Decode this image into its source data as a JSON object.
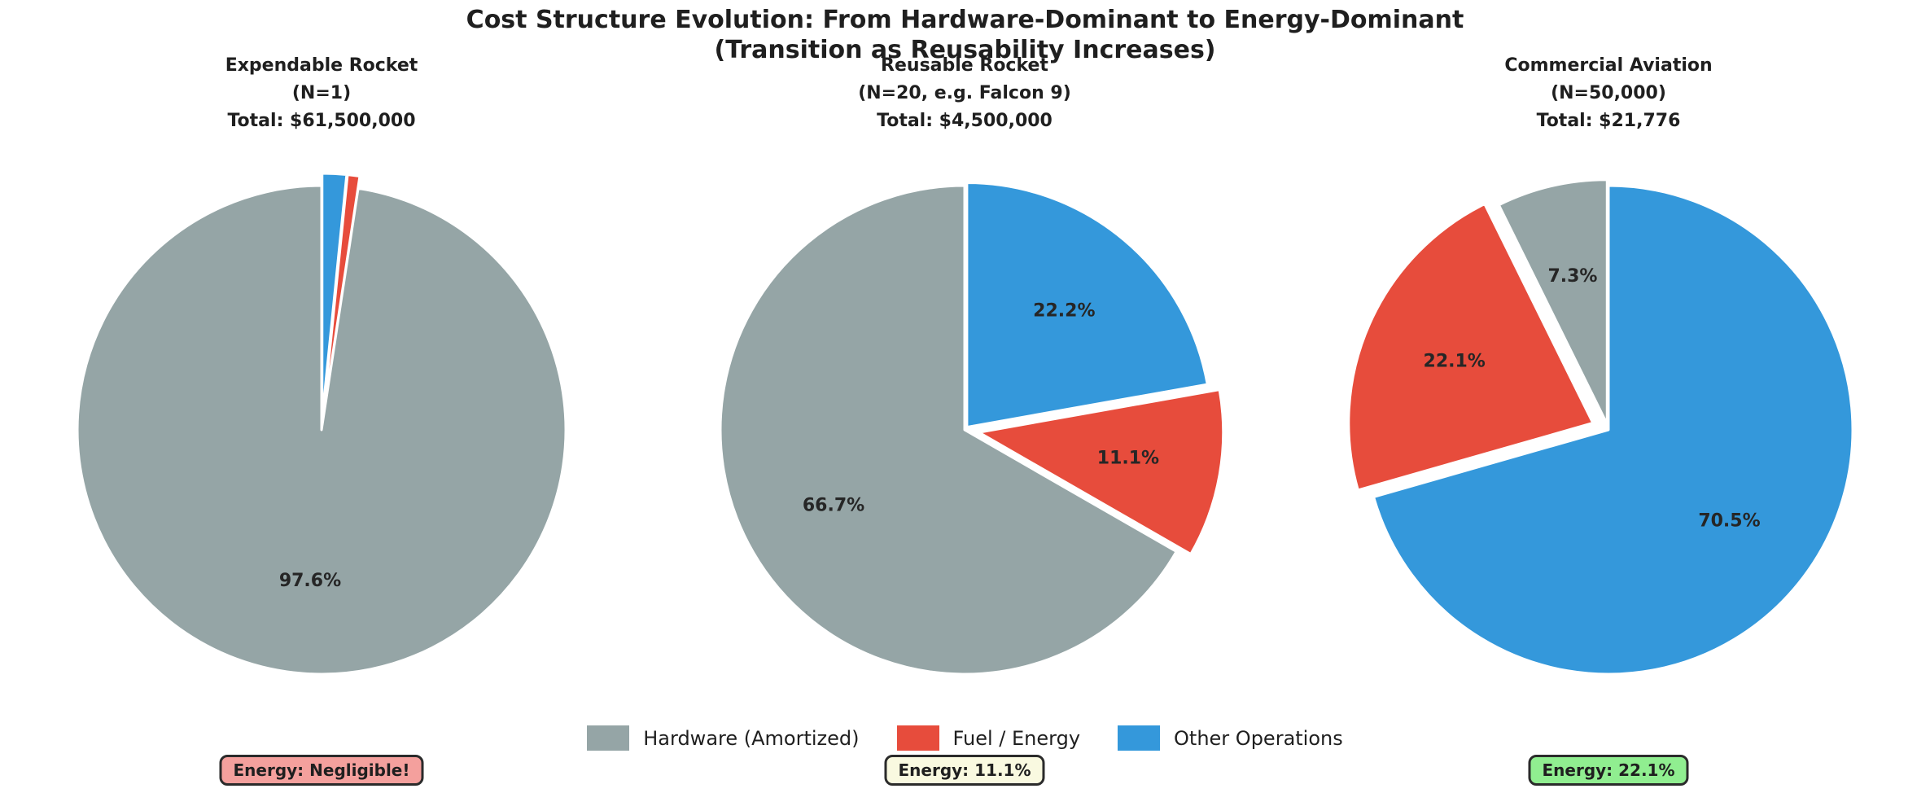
{
  "suptitle": {
    "line1": "Cost Structure Evolution: From Hardware-Dominant to Energy-Dominant",
    "line2": "(Transition as Reusability Increases)"
  },
  "legend": {
    "items": [
      {
        "label": "Hardware (Amortized)",
        "color": "#95a5a6"
      },
      {
        "label": "Fuel / Energy",
        "color": "#e74c3c"
      },
      {
        "label": "Other Operations",
        "color": "#3498db"
      }
    ]
  },
  "chart_data": [
    {
      "type": "pie",
      "title_lines": [
        "Expendable Rocket",
        "(N=1)",
        "Total: $61,500,000"
      ],
      "categories": [
        "Hardware (Amortized)",
        "Fuel / Energy",
        "Other Operations"
      ],
      "values_pct": [
        97.6,
        0.8,
        1.6
      ],
      "colors": [
        "#95a5a6",
        "#e74c3c",
        "#3498db"
      ],
      "explode": [
        0,
        0.05,
        0.05
      ],
      "start_angle": 90,
      "direction": "counterclockwise",
      "pct_label_min": 2,
      "pct_label_distance": 0.62,
      "annotation": {
        "text": "Energy: Negligible!",
        "bg": "#f4a09d"
      }
    },
    {
      "type": "pie",
      "title_lines": [
        "Reusable Rocket",
        "(N=20, e.g. Falcon 9)",
        "Total: $4,500,000"
      ],
      "categories": [
        "Hardware (Amortized)",
        "Fuel / Energy",
        "Other Operations"
      ],
      "values_pct": [
        66.7,
        11.1,
        22.2
      ],
      "colors": [
        "#95a5a6",
        "#e74c3c",
        "#3498db"
      ],
      "explode": [
        0,
        0.06,
        0.015
      ],
      "start_angle": 90,
      "direction": "counterclockwise",
      "pct_label_min": 2,
      "pct_label_distance": 0.62,
      "annotation": {
        "text": "Energy: 11.1%",
        "bg": "#f9f9e0"
      }
    },
    {
      "type": "pie",
      "title_lines": [
        "Commercial Aviation",
        "(N=50,000)",
        "Total: $21,776"
      ],
      "categories": [
        "Hardware (Amortized)",
        "Fuel / Energy",
        "Other Operations"
      ],
      "values_pct": [
        7.3,
        22.1,
        70.5
      ],
      "colors": [
        "#95a5a6",
        "#e74c3c",
        "#3498db"
      ],
      "explode": [
        0.025,
        0.07,
        0
      ],
      "start_angle": 90,
      "direction": "counterclockwise",
      "pct_label_min": 2,
      "pct_label_distance": 0.62,
      "annotation": {
        "text": "Energy: 22.1%",
        "bg": "#90ee90"
      }
    }
  ],
  "style": {
    "annotation_border": "#2b2b2b",
    "label_color": "#262626",
    "background": "#ffffff"
  }
}
